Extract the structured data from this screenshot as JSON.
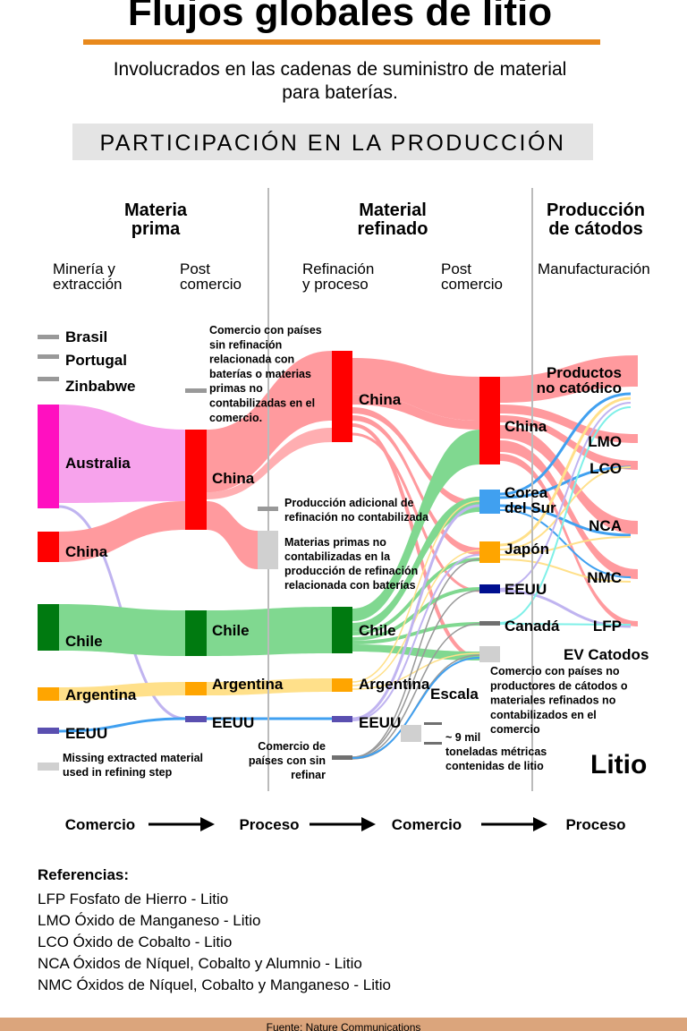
{
  "title": "Flujos globales de litio",
  "subtitle_line1": "Involucrados en las cadenas de suministro de material",
  "subtitle_line2": "para baterías.",
  "section_label": "PARTICIPACIÓN EN LA PRODUCCIÓN",
  "stages": {
    "materia_prima_1": "Materia",
    "materia_prima_2": "prima",
    "material_refinado_1": "Material",
    "material_refinado_2": "refinado",
    "produccion_1": "Producción",
    "produccion_2": "de cátodos"
  },
  "substages": {
    "mineria_1": "Minería y",
    "mineria_2": "extracción",
    "post1_1": "Post",
    "post1_2": "comercio",
    "refinacion_1": "Refinación",
    "refinacion_2": "y proceso",
    "post2_1": "Post",
    "post2_2": "comercio",
    "manufacturacion": "Manufacturación"
  },
  "col1": {
    "brasil": "Brasil",
    "portugal": "Portugal",
    "zinbabwe": "Zinbabwe",
    "australia": "Australia",
    "china": "China",
    "chile": "Chile",
    "argentina": "Argentina",
    "eeuu": "EEUU"
  },
  "col2": {
    "china": "China",
    "chile": "Chile",
    "argentina": "Argentina",
    "eeuu": "EEUU"
  },
  "col3": {
    "china": "China",
    "chile": "Chile",
    "argentina": "Argentina",
    "eeuu": "EEUU"
  },
  "col4": {
    "china": "China",
    "corea_1": "Corea",
    "corea_2": "del Sur",
    "japon": "Japón",
    "eeuu": "EEUU",
    "canada": "Canadá"
  },
  "outputs": {
    "productos_1": "Productos",
    "productos_2": "no catódico",
    "lmo": "LMO",
    "lco": "LCO",
    "nca": "NCA",
    "nmc": "NMC",
    "lfp": "LFP",
    "ev": "EV Catodos"
  },
  "notes": {
    "comercio_sin_refinacion": [
      "Comercio con países",
      "sin refinación",
      "relacionada con",
      "baterías o materias",
      "primas no",
      "contabilizadas en el",
      "comercio."
    ],
    "produccion_adicional": [
      "Producción adicional de",
      "refinación no contabilizada"
    ],
    "materias_primas_no": [
      "Materias primas no",
      "contabilizadas en la",
      "producción de refinación",
      "relacionada con baterías"
    ],
    "comercio_paises_sin_refinar": [
      "Comercio de",
      "países con sin",
      "refinar"
    ],
    "comercio_no_productores": [
      "Comercio con países no",
      "productores de cátodos o",
      "materiales refinados no",
      "contabilizados en el",
      "comercio"
    ],
    "missing": [
      "Missing extracted material",
      "used in refining step"
    ],
    "escala": "Escala",
    "escala_value": [
      "~ 9 mil",
      "toneladas métricas",
      "contenidas de litio"
    ],
    "litio": "Litio"
  },
  "flow_steps": [
    "Comercio",
    "Proceso",
    "Comercio",
    "Proceso"
  ],
  "references": {
    "title": "Referencias:",
    "items": [
      "LFP Fosfato de Hierro - Litio",
      "LMO Óxido de Manganeso - Litio",
      "LCO Óxido de Cobalto - Litio",
      "NCA Óxidos de Níquel, Cobalto y Alumnio - Litio",
      "NMC Óxidos de Níquel, Cobalto y Manganeso - Litio"
    ]
  },
  "source": "Fuente: Nature Communications",
  "colors": {
    "accent": "#e8891c",
    "footer": "#dba57c",
    "section_bg": "#e4e4e4",
    "china": "#ff0000",
    "china_flow": "#ff9a9e",
    "australia": "#ff10c0",
    "australia_flow": "#f7a3ec",
    "chile": "#007a10",
    "chile_flow": "#80d890",
    "argentina": "#ffa500",
    "argentina_flow": "#ffe08a",
    "eeuu": "#5a4fb0",
    "corea": "#40a0f0",
    "eeuu_navy": "#000f90",
    "canada": "#707070",
    "canada_flow": "#7ff0e8",
    "gray": "#999999",
    "light_gray": "#d0d0d0",
    "lavender": "#c0b4f0",
    "divider": "#bbbbbb"
  }
}
